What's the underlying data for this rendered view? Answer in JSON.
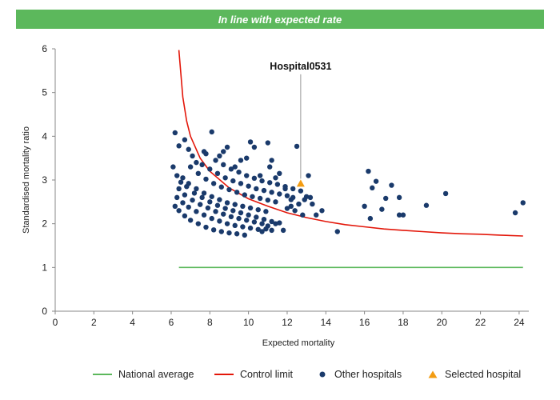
{
  "banner": {
    "text": "In line with expected rate",
    "color": "#5cb85c"
  },
  "legend": {
    "national": "National average",
    "control": "Control limit",
    "others": "Other hospitals",
    "selected": "Selected hospital"
  },
  "colors": {
    "national": "#5cb85c",
    "control": "#e3170a",
    "others": "#1a3a6b",
    "selected": "#f39c12"
  },
  "chart_data": {
    "type": "scatter",
    "xlabel": "Expected mortality",
    "ylabel": "Standardised mortality ratio",
    "xlim": [
      0,
      24.5
    ],
    "ylim": [
      0,
      6
    ],
    "xticks": [
      0,
      2,
      4,
      6,
      8,
      10,
      12,
      14,
      16,
      18,
      20,
      22,
      24
    ],
    "yticks": [
      0,
      1,
      2,
      3,
      4,
      5,
      6
    ],
    "grid": false,
    "legend_position": "bottom",
    "national_average": {
      "y": 1,
      "x_range": [
        6.4,
        24.2
      ]
    },
    "control_limit": {
      "points": [
        [
          6.4,
          5.97
        ],
        [
          6.6,
          4.9
        ],
        [
          6.8,
          4.35
        ],
        [
          7.0,
          4.0
        ],
        [
          7.5,
          3.5
        ],
        [
          8.0,
          3.2
        ],
        [
          9.0,
          2.82
        ],
        [
          10.0,
          2.57
        ],
        [
          11.0,
          2.4
        ],
        [
          12.0,
          2.25
        ],
        [
          13.0,
          2.14
        ],
        [
          14.0,
          2.05
        ],
        [
          15.0,
          1.98
        ],
        [
          16.0,
          1.93
        ],
        [
          17.0,
          1.88
        ],
        [
          18.0,
          1.85
        ],
        [
          19.0,
          1.82
        ],
        [
          20.0,
          1.79
        ],
        [
          21.0,
          1.77
        ],
        [
          22.0,
          1.76
        ],
        [
          23.0,
          1.74
        ],
        [
          24.2,
          1.72
        ]
      ]
    },
    "selected_hospital": {
      "name": "Hospital0531",
      "x": 12.7,
      "y": 2.92
    },
    "other_hospitals": [
      [
        6.2,
        4.08
      ],
      [
        6.4,
        3.78
      ],
      [
        6.7,
        3.92
      ],
      [
        6.9,
        3.7
      ],
      [
        7.1,
        3.55
      ],
      [
        7.3,
        3.4
      ],
      [
        7.7,
        3.65
      ],
      [
        7.8,
        3.6
      ],
      [
        8.1,
        4.1
      ],
      [
        8.5,
        3.55
      ],
      [
        8.7,
        3.65
      ],
      [
        8.9,
        3.75
      ],
      [
        9.3,
        3.3
      ],
      [
        9.6,
        3.45
      ],
      [
        9.9,
        3.5
      ],
      [
        10.1,
        3.87
      ],
      [
        10.3,
        3.75
      ],
      [
        10.6,
        3.1
      ],
      [
        11.0,
        3.85
      ],
      [
        11.1,
        3.3
      ],
      [
        11.2,
        3.45
      ],
      [
        11.4,
        3.05
      ],
      [
        11.6,
        3.15
      ],
      [
        11.9,
        2.8
      ],
      [
        12.2,
        2.55
      ],
      [
        12.5,
        3.77
      ],
      [
        13.0,
        2.62
      ],
      [
        13.1,
        3.1
      ],
      [
        13.2,
        2.6
      ],
      [
        13.3,
        2.45
      ],
      [
        13.5,
        2.2
      ],
      [
        13.8,
        2.3
      ],
      [
        14.6,
        1.82
      ],
      [
        16.0,
        2.4
      ],
      [
        16.2,
        3.2
      ],
      [
        16.3,
        2.12
      ],
      [
        16.4,
        2.82
      ],
      [
        16.6,
        2.97
      ],
      [
        16.9,
        2.33
      ],
      [
        17.1,
        2.58
      ],
      [
        17.4,
        2.88
      ],
      [
        17.8,
        2.2
      ],
      [
        17.8,
        2.6
      ],
      [
        18.0,
        2.2
      ],
      [
        19.2,
        2.42
      ],
      [
        20.2,
        2.69
      ],
      [
        23.8,
        2.25
      ],
      [
        24.2,
        2.48
      ],
      [
        6.1,
        3.3
      ],
      [
        6.3,
        3.1
      ],
      [
        6.5,
        2.95
      ],
      [
        6.8,
        2.85
      ],
      [
        7.2,
        2.7
      ],
      [
        7.6,
        2.6
      ],
      [
        8.0,
        2.5
      ],
      [
        8.4,
        2.42
      ],
      [
        8.8,
        2.35
      ],
      [
        9.2,
        2.3
      ],
      [
        9.6,
        2.25
      ],
      [
        10.0,
        2.2
      ],
      [
        10.4,
        2.15
      ],
      [
        10.8,
        2.1
      ],
      [
        11.2,
        2.05
      ],
      [
        11.6,
        2.02
      ],
      [
        12.0,
        2.35
      ],
      [
        12.4,
        2.3
      ],
      [
        12.8,
        2.2
      ],
      [
        12.9,
        2.55
      ],
      [
        12.6,
        2.45
      ],
      [
        12.3,
        2.6
      ],
      [
        12.2,
        2.4
      ],
      [
        11.8,
        1.85
      ],
      [
        11.4,
        2.0
      ],
      [
        11.0,
        1.95
      ],
      [
        6.2,
        2.4
      ],
      [
        6.4,
        2.3
      ],
      [
        6.7,
        2.18
      ],
      [
        7.0,
        2.08
      ],
      [
        7.4,
        2.0
      ],
      [
        7.8,
        1.92
      ],
      [
        8.2,
        1.86
      ],
      [
        8.6,
        1.82
      ],
      [
        9.0,
        1.79
      ],
      [
        9.4,
        1.77
      ],
      [
        9.8,
        1.74
      ],
      [
        10.7,
        1.82
      ],
      [
        11.2,
        1.85
      ],
      [
        10.9,
        1.88
      ],
      [
        6.3,
        2.6
      ],
      [
        6.6,
        2.48
      ],
      [
        6.9,
        2.38
      ],
      [
        7.3,
        2.28
      ],
      [
        7.7,
        2.2
      ],
      [
        8.1,
        2.12
      ],
      [
        8.5,
        2.06
      ],
      [
        8.9,
        2.0
      ],
      [
        9.3,
        1.96
      ],
      [
        9.7,
        1.93
      ],
      [
        10.1,
        1.9
      ],
      [
        10.5,
        1.87
      ],
      [
        6.4,
        2.8
      ],
      [
        6.7,
        2.66
      ],
      [
        7.1,
        2.54
      ],
      [
        7.5,
        2.44
      ],
      [
        7.9,
        2.36
      ],
      [
        8.3,
        2.28
      ],
      [
        8.7,
        2.22
      ],
      [
        9.1,
        2.16
      ],
      [
        9.5,
        2.12
      ],
      [
        9.9,
        2.08
      ],
      [
        10.3,
        2.04
      ],
      [
        10.7,
        2.0
      ],
      [
        6.6,
        3.05
      ],
      [
        6.9,
        2.92
      ],
      [
        7.3,
        2.8
      ],
      [
        7.7,
        2.7
      ],
      [
        8.1,
        2.62
      ],
      [
        8.5,
        2.55
      ],
      [
        8.9,
        2.48
      ],
      [
        9.3,
        2.44
      ],
      [
        9.7,
        2.4
      ],
      [
        10.1,
        2.36
      ],
      [
        10.5,
        2.32
      ],
      [
        10.9,
        2.28
      ],
      [
        7.0,
        3.3
      ],
      [
        7.4,
        3.15
      ],
      [
        7.8,
        3.02
      ],
      [
        8.2,
        2.92
      ],
      [
        8.6,
        2.84
      ],
      [
        9.0,
        2.78
      ],
      [
        9.4,
        2.72
      ],
      [
        9.8,
        2.66
      ],
      [
        10.2,
        2.62
      ],
      [
        10.6,
        2.58
      ],
      [
        11.0,
        2.54
      ],
      [
        11.4,
        2.5
      ],
      [
        7.6,
        3.35
      ],
      [
        8.0,
        3.25
      ],
      [
        8.4,
        3.15
      ],
      [
        8.8,
        3.05
      ],
      [
        9.2,
        2.98
      ],
      [
        9.6,
        2.92
      ],
      [
        10.0,
        2.86
      ],
      [
        10.4,
        2.8
      ],
      [
        10.8,
        2.76
      ],
      [
        11.2,
        2.72
      ],
      [
        11.6,
        2.68
      ],
      [
        12.0,
        2.64
      ],
      [
        8.3,
        3.45
      ],
      [
        8.7,
        3.35
      ],
      [
        9.1,
        3.25
      ],
      [
        9.5,
        3.18
      ],
      [
        9.9,
        3.1
      ],
      [
        10.3,
        3.04
      ],
      [
        10.7,
        2.98
      ],
      [
        11.1,
        2.94
      ],
      [
        11.5,
        2.9
      ],
      [
        11.9,
        2.85
      ],
      [
        12.3,
        2.8
      ],
      [
        12.7,
        2.75
      ]
    ]
  }
}
